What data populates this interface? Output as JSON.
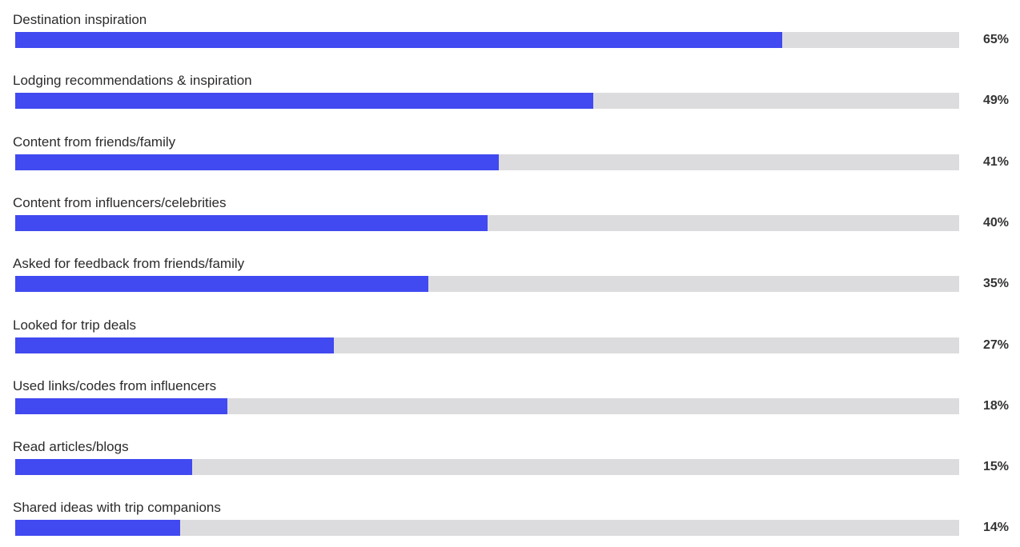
{
  "chart_data": {
    "type": "bar",
    "orientation": "horizontal",
    "title": "",
    "xlabel": "",
    "ylabel": "",
    "xlim": [
      0,
      80
    ],
    "grid": false,
    "legend": "none",
    "categories": [
      "Destination inspiration",
      "Lodging recommendations & inspiration",
      "Content from friends/family",
      "Content from influencers/celebrities",
      "Asked for feedback from friends/family",
      "Looked for trip deals",
      "Used links/codes from influencers",
      "Read articles/blogs",
      "Shared ideas with trip companions"
    ],
    "values": [
      65,
      49,
      41,
      40,
      35,
      27,
      18,
      15,
      14
    ],
    "value_labels": [
      "65%",
      "49%",
      "41%",
      "40%",
      "35%",
      "27%",
      "18%",
      "15%",
      "14%"
    ],
    "colors": {
      "bar": "#4149f0",
      "track": "#dcdcde"
    }
  }
}
